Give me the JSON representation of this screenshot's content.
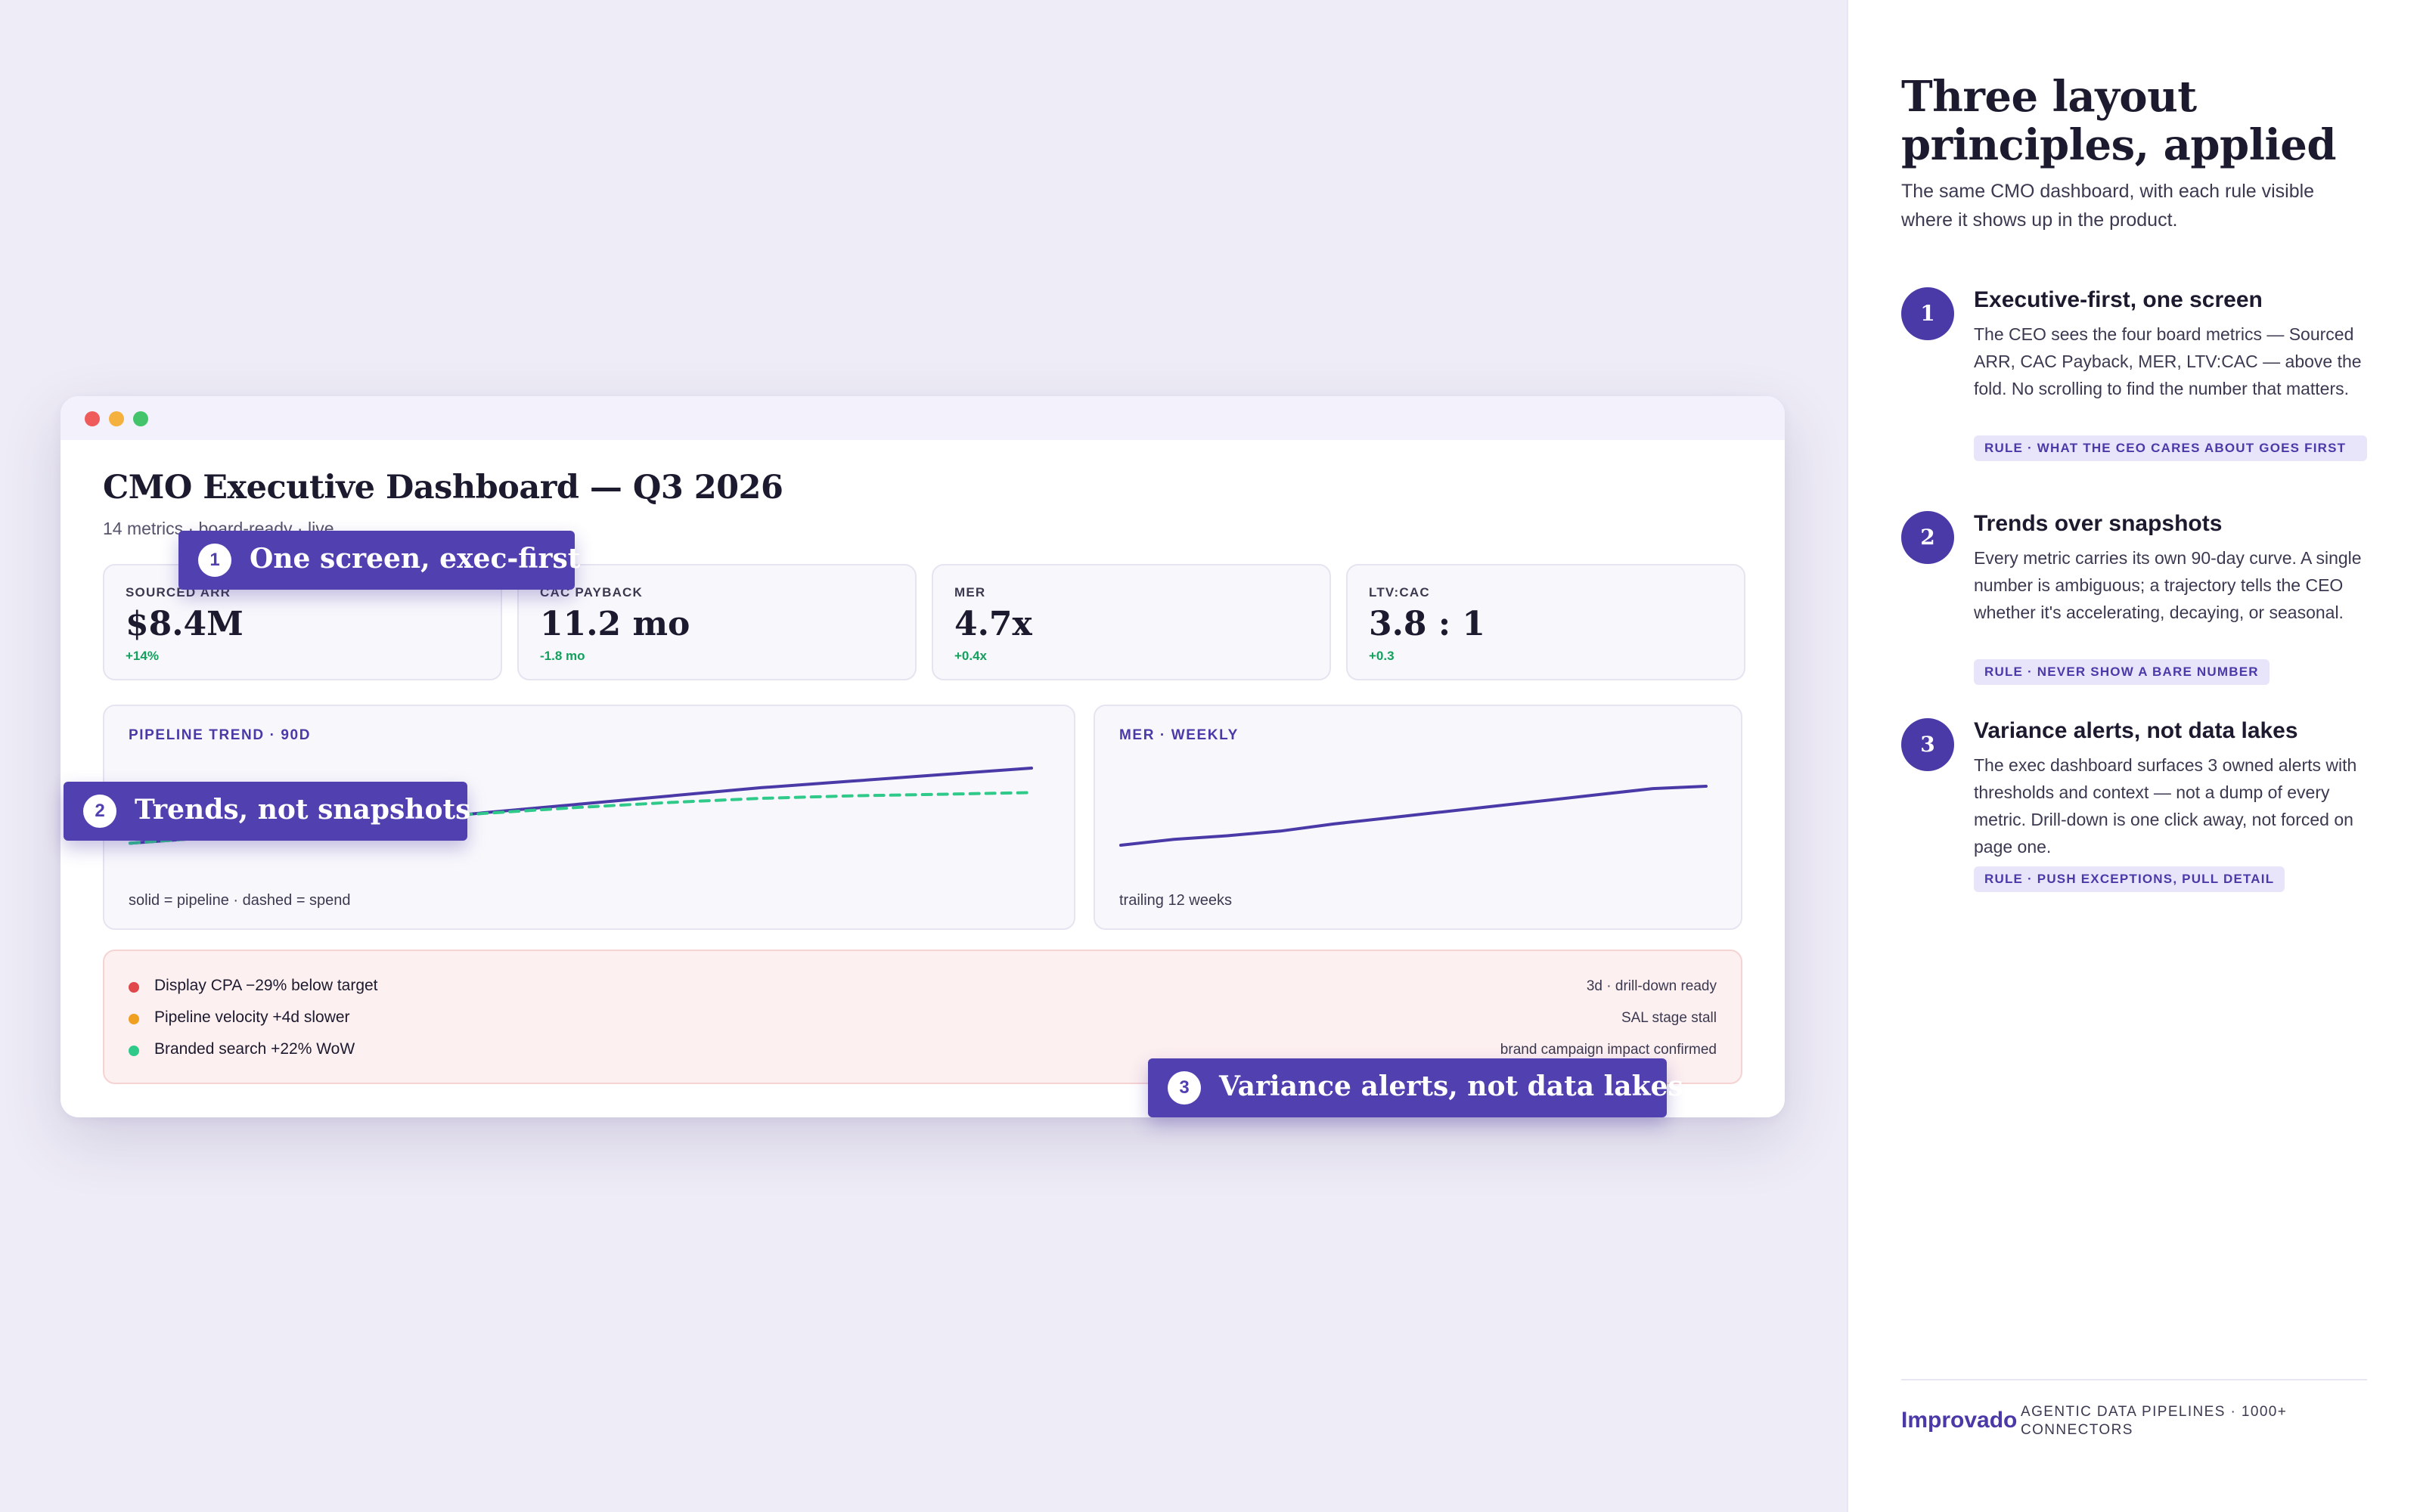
{
  "dashboard": {
    "title": "CMO Executive Dashboard — Q3 2026",
    "subtitle": "14 metrics · board-ready · live",
    "kpis": [
      {
        "label": "SOURCED ARR",
        "value": "$8.4M",
        "delta": "+14%"
      },
      {
        "label": "CAC PAYBACK",
        "value": "11.2 mo",
        "delta": "-1.8 mo"
      },
      {
        "label": "MER",
        "value": "4.7x",
        "delta": "+0.4x"
      },
      {
        "label": "LTV:CAC",
        "value": "3.8 : 1",
        "delta": "+0.3"
      }
    ],
    "pipeline_card": {
      "label": "PIPELINE TREND · 90D",
      "footnote": "solid = pipeline · dashed = spend"
    },
    "mer_card": {
      "label": "MER · WEEKLY",
      "footnote": "trailing 12 weeks"
    },
    "alerts": [
      {
        "text": "Display CPA −29% below target",
        "meta": "3d · drill-down ready",
        "color": "#e0484b"
      },
      {
        "text": "Pipeline velocity +4d slower",
        "meta": "SAL stage stall",
        "color": "#f0a020"
      },
      {
        "text": "Branded search +22% WoW",
        "meta": "brand campaign impact confirmed",
        "color": "#2fc98a"
      }
    ]
  },
  "chart_data": [
    {
      "type": "line",
      "title": "PIPELINE TREND · 90D",
      "x": [
        1,
        2,
        3,
        4,
        5,
        6,
        7,
        8,
        9,
        10,
        11
      ],
      "series": [
        {
          "name": "pipeline",
          "style": "solid",
          "color": "#4a3aa8",
          "values": [
            0.08,
            0.16,
            0.26,
            0.36,
            0.46,
            0.56,
            0.66,
            0.76,
            0.84,
            0.92,
            1.0
          ]
        },
        {
          "name": "spend",
          "style": "dashed",
          "color": "#2fc98a",
          "values": [
            0.08,
            0.16,
            0.28,
            0.38,
            0.45,
            0.52,
            0.58,
            0.63,
            0.66,
            0.68,
            0.7
          ]
        }
      ]
    },
    {
      "type": "line",
      "title": "MER · WEEKLY",
      "x": [
        1,
        2,
        3,
        4,
        5,
        6,
        7,
        8,
        9,
        10,
        11,
        12
      ],
      "series": [
        {
          "name": "MER",
          "style": "solid",
          "color": "#4a3aa8",
          "values": [
            0.0,
            0.1,
            0.16,
            0.24,
            0.36,
            0.46,
            0.56,
            0.66,
            0.76,
            0.86,
            0.96,
            1.0
          ]
        }
      ]
    }
  ],
  "callouts": [
    {
      "num": "1",
      "text": "One screen, exec-first"
    },
    {
      "num": "2",
      "text": "Trends, not snapshots"
    },
    {
      "num": "3",
      "text": "Variance alerts, not data lakes"
    }
  ],
  "sidebar": {
    "title": "Three layout principles, applied",
    "subtitle": "The same CMO dashboard, with each rule visible where it shows up in the product.",
    "principles": [
      {
        "num": "1",
        "title": "Executive-first, one screen",
        "body": "The CEO sees the four board metrics — Sourced ARR, CAC Payback, MER, LTV:CAC — above the fold. No scrolling to find the number that matters.",
        "rule": "RULE · WHAT THE CEO CARES ABOUT GOES FIRST"
      },
      {
        "num": "2",
        "title": "Trends over snapshots",
        "body": "Every metric carries its own 90-day curve. A single number is ambiguous; a trajectory tells the CEO whether it's accelerating, decaying, or seasonal.",
        "rule": "RULE · NEVER SHOW A BARE NUMBER"
      },
      {
        "num": "3",
        "title": "Variance alerts, not data lakes",
        "body": "The exec dashboard surfaces 3 owned alerts with thresholds and context — not a dump of every metric. Drill-down is one click away, not forced on page one.",
        "rule": "RULE · PUSH EXCEPTIONS, PULL DETAIL"
      }
    ],
    "brand": "Improvado",
    "brand_tagline": "AGENTIC DATA PIPELINES · 1000+ CONNECTORS"
  }
}
